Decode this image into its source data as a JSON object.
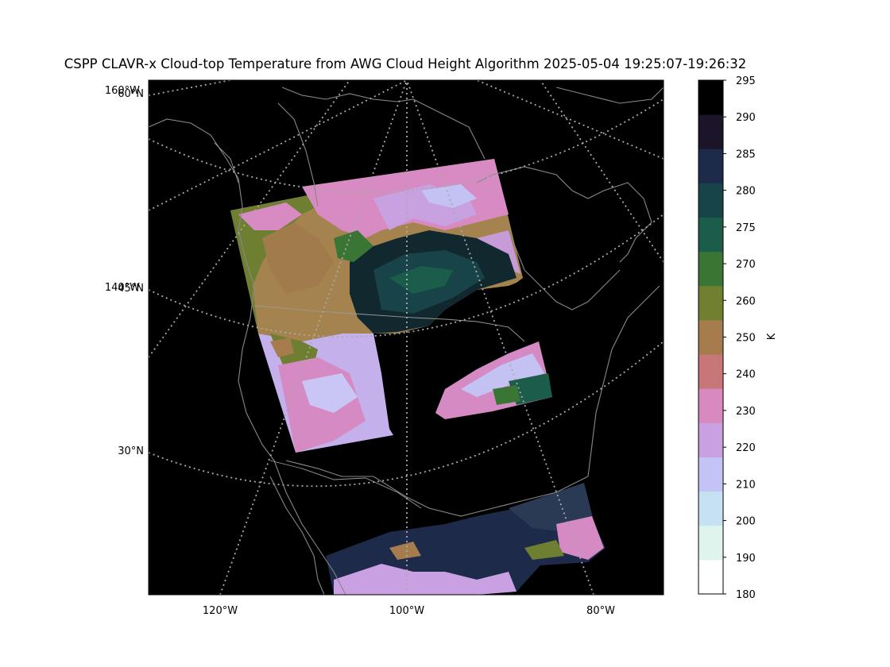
{
  "figure": {
    "title": "CSPP CLAVR-x Cloud-top Temperature from AWG Cloud Height Algorithm 2025-05-04 19:25:07-19:26:32"
  },
  "map": {
    "background_color": "#000000",
    "coastline_color": "#888888",
    "gridline_color": "#aaaaaa",
    "gridline_style": "dotted",
    "lon_labels_bottom": [
      "120°W",
      "100°W",
      "80°W"
    ],
    "lat_labels_left": [
      {
        "lat": "60°N",
        "lon": "160°W"
      },
      {
        "lat": "45°N",
        "lon": "140°W"
      },
      {
        "lat": "30°N",
        "lon": ""
      }
    ]
  },
  "colorbar": {
    "label": "K",
    "ticks": [
      "180",
      "190",
      "200",
      "210",
      "220",
      "230",
      "240",
      "250",
      "260",
      "270",
      "275",
      "280",
      "285",
      "290",
      "295"
    ],
    "colors": [
      "#ffffff",
      "#dff4ec",
      "#c6e2f2",
      "#c3c3f5",
      "#c9a0e2",
      "#d889bd",
      "#c77778",
      "#a67c4d",
      "#707f30",
      "#3a7535",
      "#1b5d4a",
      "#174349",
      "#1d2a4a",
      "#1c1428",
      "#000000"
    ]
  }
}
